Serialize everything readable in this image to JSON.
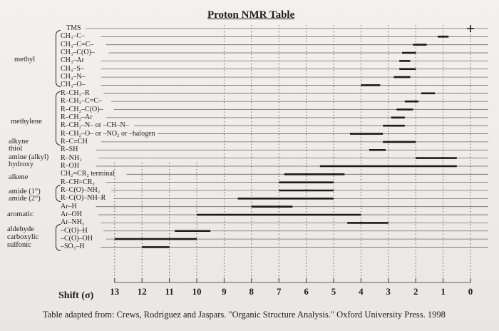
{
  "title": "Proton NMR Table",
  "shift_label": "Shift (σ)",
  "scale": [
    13,
    12,
    11,
    10,
    9,
    8,
    7,
    6,
    5,
    4,
    3,
    2,
    1,
    0
  ],
  "source": "Table adapted from: Crews, Rodriguez and Jaspars. \"Organic Structure Analysis.\" Oxford University Press. 1998",
  "categories": [
    {
      "key": "methyl",
      "label": "methyl"
    },
    {
      "key": "methylene",
      "label": "methylene"
    },
    {
      "key": "alkyne",
      "label": "alkyne"
    },
    {
      "key": "thiol",
      "label": "thiol"
    },
    {
      "key": "amine",
      "label": "amine (alkyl)"
    },
    {
      "key": "hydroxy",
      "label": "hydroxy"
    },
    {
      "key": "alkene",
      "label": "alkene"
    },
    {
      "key": "amide1",
      "label": "amide (1°)"
    },
    {
      "key": "amide2",
      "label": "amide (2°)"
    },
    {
      "key": "aromatic",
      "label": "aromatic"
    },
    {
      "key": "aldehyde",
      "label": "aldehyde"
    },
    {
      "key": "carboxylic",
      "label": "carboxylic"
    },
    {
      "key": "sulfonic",
      "label": "sulfonic"
    }
  ],
  "rows": [
    {
      "label": "TMS",
      "range": [
        0,
        0
      ]
    },
    {
      "label": "CH₃–C–",
      "range": [
        0.8,
        1.2
      ]
    },
    {
      "label": "CH₃–C=C–",
      "range": [
        1.6,
        2.1
      ]
    },
    {
      "label": "CH₃–C(O)–",
      "range": [
        2.0,
        2.5
      ]
    },
    {
      "label": "CH₃–Ar",
      "range": [
        2.2,
        2.6
      ]
    },
    {
      "label": "CH₃–S–",
      "range": [
        2.0,
        2.6
      ]
    },
    {
      "label": "CH₃–N–",
      "range": [
        2.2,
        2.8
      ]
    },
    {
      "label": "CH₃–O–",
      "range": [
        3.3,
        4.0
      ]
    },
    {
      "label": "R–CH₂–R",
      "range": [
        1.3,
        1.8
      ]
    },
    {
      "label": "R–CH₂–C=C–",
      "range": [
        1.9,
        2.4
      ]
    },
    {
      "label": "R–CH₂–C(O)–",
      "range": [
        2.1,
        2.7
      ]
    },
    {
      "label": "R–CH₂–Ar",
      "range": [
        2.4,
        2.9
      ]
    },
    {
      "label": "R–CH₂–N–  or –CH–N–",
      "range": [
        2.4,
        3.2
      ]
    },
    {
      "label": "R–CH₂–O– or –NO₂ or –halogen",
      "range": [
        3.2,
        4.4
      ]
    },
    {
      "label": "R–C≡CH",
      "range": [
        2.0,
        3.2
      ]
    },
    {
      "label": "R–SH",
      "range": [
        3.1,
        3.7
      ]
    },
    {
      "label": "R–NH₂",
      "range": [
        0.5,
        2.0
      ]
    },
    {
      "label": "R–OH",
      "range": [
        0.5,
        5.5
      ]
    },
    {
      "label": "CH₂=CR₂ terminal",
      "range": [
        4.6,
        6.8
      ]
    },
    {
      "label": "R–CH=CR₂",
      "range": [
        5.0,
        7.0
      ]
    },
    {
      "label": "R–C(O)–NH₂",
      "range": [
        5.0,
        7.0
      ]
    },
    {
      "label": "R–C(O)–NH–R",
      "range": [
        5.0,
        8.5
      ]
    },
    {
      "label": "Ar–H",
      "range": [
        6.5,
        8.0
      ]
    },
    {
      "label": "Ar–OH",
      "range": [
        4.0,
        10.0
      ]
    },
    {
      "label": "Ar–NH₂",
      "range": [
        3.0,
        4.5
      ]
    },
    {
      "label": "–C(O)–H",
      "range": [
        9.5,
        10.8
      ]
    },
    {
      "label": "–C(O)–OH",
      "range": [
        10.0,
        13.0
      ]
    },
    {
      "label": "–SO₃–H",
      "range": [
        11.0,
        12.0
      ]
    }
  ]
}
